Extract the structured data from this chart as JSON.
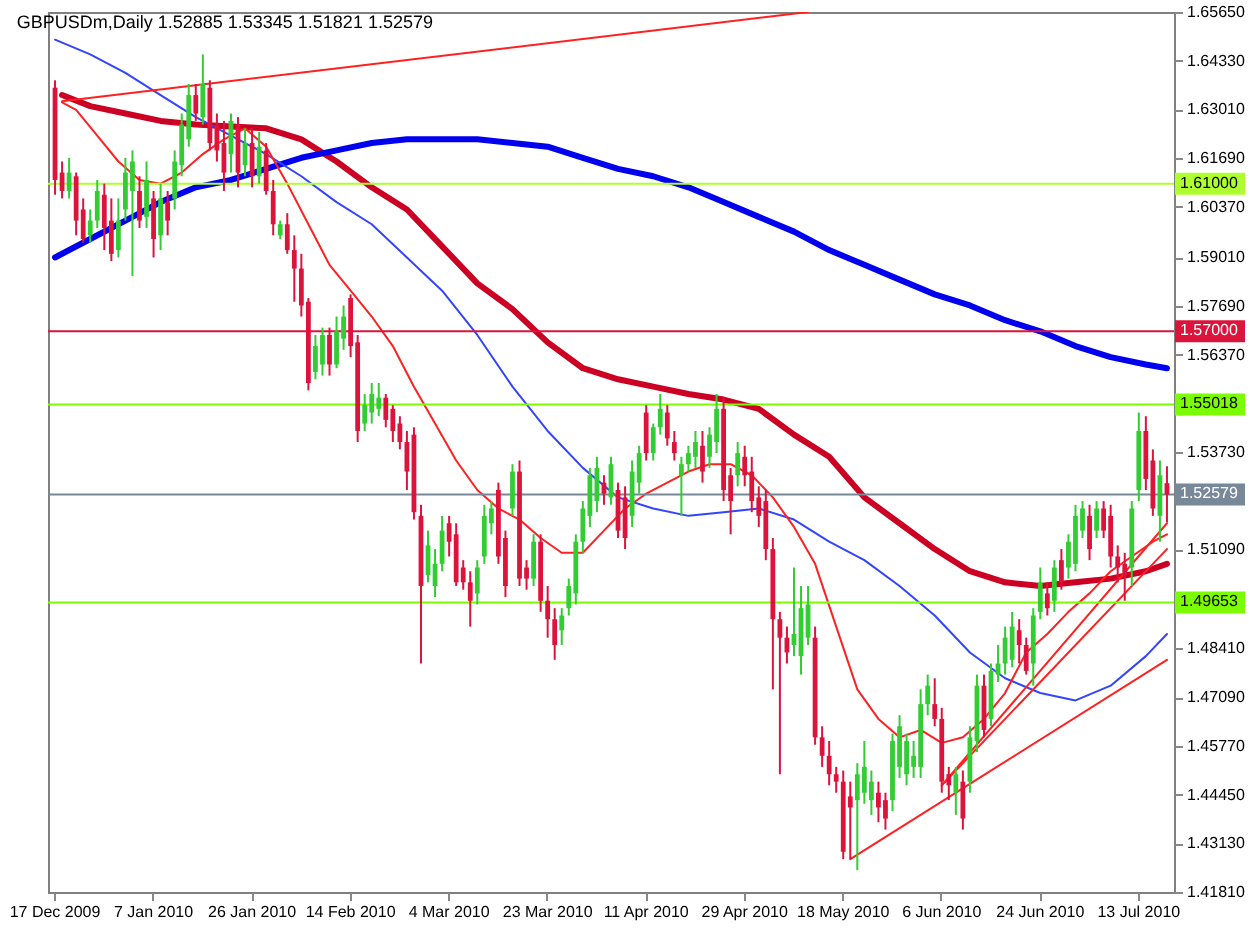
{
  "chart_data": {
    "type": "candlestick",
    "title": "GBPUSDm,Daily  1.52885 1.53345 1.51821 1.52579",
    "categories": [
      "17 Dec 2009",
      null,
      null,
      null,
      null,
      null,
      null,
      null,
      null,
      null,
      null,
      null,
      null,
      null,
      "7 Jan 2010",
      null,
      null,
      null,
      null,
      null,
      null,
      null,
      null,
      null,
      null,
      null,
      null,
      null,
      "26 Jan 2010",
      null,
      null,
      null,
      null,
      null,
      null,
      null,
      null,
      null,
      null,
      null,
      null,
      null,
      "14 Feb 2010",
      null,
      null,
      null,
      null,
      null,
      null,
      null,
      null,
      null,
      null,
      null,
      null,
      null,
      "4 Mar 2010",
      null,
      null,
      null,
      null,
      null,
      null,
      null,
      null,
      null,
      null,
      null,
      null,
      null,
      "23 Mar 2010",
      null,
      null,
      null,
      null,
      null,
      null,
      null,
      null,
      null,
      null,
      null,
      null,
      null,
      "11 Apr 2010",
      null,
      null,
      null,
      null,
      null,
      null,
      null,
      null,
      null,
      null,
      null,
      null,
      null,
      "29 Apr 2010",
      null,
      null,
      null,
      null,
      null,
      null,
      null,
      null,
      null,
      null,
      null,
      null,
      null,
      "18 May 2010",
      null,
      null,
      null,
      null,
      null,
      null,
      null,
      null,
      null,
      null,
      null,
      null,
      null,
      "6 Jun 2010",
      null,
      null,
      null,
      null,
      null,
      null,
      null,
      null,
      null,
      null,
      null,
      null,
      null,
      "24 Jun 2010",
      null,
      null,
      null,
      null,
      null,
      null,
      null,
      null,
      null,
      null,
      null,
      null,
      null,
      "13 Jul 2010",
      null,
      null,
      null,
      null
    ],
    "ohlc": [
      [
        1.636,
        1.638,
        1.607,
        1.611
      ],
      [
        1.613,
        1.616,
        1.606,
        1.608
      ],
      [
        1.608,
        1.617,
        1.606,
        1.613
      ],
      [
        1.612,
        1.613,
        1.596,
        1.6
      ],
      [
        1.603,
        1.606,
        1.594,
        1.595
      ],
      [
        1.596,
        1.603,
        1.594,
        1.6
      ],
      [
        1.6,
        1.611,
        1.598,
        1.608
      ],
      [
        1.607,
        1.61,
        1.592,
        1.598
      ],
      [
        1.6,
        1.606,
        1.589,
        1.591
      ],
      [
        1.592,
        1.606,
        1.59,
        1.6
      ],
      [
        1.603,
        1.617,
        1.6,
        1.613
      ],
      [
        1.608,
        1.619,
        1.585,
        1.616
      ],
      [
        1.608,
        1.612,
        1.598,
        1.6
      ],
      [
        1.601,
        1.616,
        1.598,
        1.611
      ],
      [
        1.606,
        1.608,
        1.59,
        1.595
      ],
      [
        1.596,
        1.61,
        1.592,
        1.606
      ],
      [
        1.605,
        1.608,
        1.596,
        1.6
      ],
      [
        1.606,
        1.619,
        1.603,
        1.616
      ],
      [
        1.615,
        1.629,
        1.612,
        1.626
      ],
      [
        1.622,
        1.637,
        1.62,
        1.634
      ],
      [
        1.634,
        1.637,
        1.627,
        1.629
      ],
      [
        1.628,
        1.645,
        1.626,
        1.637
      ],
      [
        1.636,
        1.638,
        1.619,
        1.621
      ],
      [
        1.626,
        1.629,
        1.616,
        1.619
      ],
      [
        1.621,
        1.627,
        1.608,
        1.613
      ],
      [
        1.618,
        1.629,
        1.613,
        1.627
      ],
      [
        1.626,
        1.628,
        1.609,
        1.613
      ],
      [
        1.615,
        1.625,
        1.612,
        1.621
      ],
      [
        1.621,
        1.625,
        1.609,
        1.612
      ],
      [
        1.612,
        1.624,
        1.61,
        1.62
      ],
      [
        1.619,
        1.621,
        1.607,
        1.608
      ],
      [
        1.608,
        1.611,
        1.596,
        1.599
      ],
      [
        1.596,
        1.6,
        1.595,
        1.599
      ],
      [
        1.599,
        1.602,
        1.591,
        1.592
      ],
      [
        1.592,
        1.596,
        1.578,
        1.587
      ],
      [
        1.587,
        1.591,
        1.574,
        1.577
      ],
      [
        1.578,
        1.579,
        1.554,
        1.556
      ],
      [
        1.559,
        1.569,
        1.557,
        1.566
      ],
      [
        1.561,
        1.571,
        1.558,
        1.569
      ],
      [
        1.569,
        1.571,
        1.558,
        1.561
      ],
      [
        1.561,
        1.574,
        1.56,
        1.57
      ],
      [
        1.568,
        1.577,
        1.565,
        1.574
      ],
      [
        1.579,
        1.58,
        1.563,
        1.566
      ],
      [
        1.567,
        1.569,
        1.54,
        1.543
      ],
      [
        1.545,
        1.553,
        1.543,
        1.55
      ],
      [
        1.548,
        1.556,
        1.545,
        1.553
      ],
      [
        1.549,
        1.556,
        1.547,
        1.552
      ],
      [
        1.552,
        1.553,
        1.544,
        1.546
      ],
      [
        1.549,
        1.55,
        1.54,
        1.543
      ],
      [
        1.545,
        1.547,
        1.538,
        1.54
      ],
      [
        1.54,
        1.543,
        1.527,
        1.532
      ],
      [
        1.542,
        1.544,
        1.519,
        1.521
      ],
      [
        1.52,
        1.523,
        1.48,
        1.501
      ],
      [
        1.504,
        1.516,
        1.502,
        1.512
      ],
      [
        1.501,
        1.511,
        1.498,
        1.507
      ],
      [
        1.507,
        1.52,
        1.505,
        1.516
      ],
      [
        1.518,
        1.52,
        1.509,
        1.513
      ],
      [
        1.515,
        1.518,
        1.501,
        1.502
      ],
      [
        1.506,
        1.508,
        1.5,
        1.502
      ],
      [
        1.502,
        1.505,
        1.49,
        1.497
      ],
      [
        1.499,
        1.508,
        1.496,
        1.506
      ],
      [
        1.509,
        1.523,
        1.507,
        1.52
      ],
      [
        1.518,
        1.524,
        1.515,
        1.522
      ],
      [
        1.527,
        1.529,
        1.507,
        1.509
      ],
      [
        1.514,
        1.516,
        1.498,
        1.501
      ],
      [
        1.522,
        1.534,
        1.52,
        1.532
      ],
      [
        1.532,
        1.535,
        1.501,
        1.503
      ],
      [
        1.506,
        1.508,
        1.5,
        1.503
      ],
      [
        1.503,
        1.515,
        1.501,
        1.513
      ],
      [
        1.513,
        1.515,
        1.494,
        1.497
      ],
      [
        1.497,
        1.501,
        1.487,
        1.492
      ],
      [
        1.492,
        1.495,
        1.481,
        1.485
      ],
      [
        1.489,
        1.495,
        1.485,
        1.493
      ],
      [
        1.495,
        1.503,
        1.493,
        1.501
      ],
      [
        1.499,
        1.515,
        1.496,
        1.513
      ],
      [
        1.513,
        1.524,
        1.51,
        1.522
      ],
      [
        1.52,
        1.533,
        1.517,
        1.531
      ],
      [
        1.524,
        1.536,
        1.521,
        1.533
      ],
      [
        1.529,
        1.531,
        1.523,
        1.526
      ],
      [
        1.525,
        1.536,
        1.523,
        1.534
      ],
      [
        1.527,
        1.529,
        1.514,
        1.516
      ],
      [
        1.525,
        1.528,
        1.511,
        1.514
      ],
      [
        1.52,
        1.535,
        1.517,
        1.532
      ],
      [
        1.529,
        1.539,
        1.526,
        1.537
      ],
      [
        1.548,
        1.55,
        1.535,
        1.537
      ],
      [
        1.537,
        1.545,
        1.535,
        1.544
      ],
      [
        1.544,
        1.553,
        1.542,
        1.549
      ],
      [
        1.548,
        1.55,
        1.539,
        1.541
      ],
      [
        1.54,
        1.543,
        1.535,
        1.537
      ],
      [
        1.531,
        1.536,
        1.52,
        1.534
      ],
      [
        1.534,
        1.539,
        1.532,
        1.537
      ],
      [
        1.536,
        1.543,
        1.533,
        1.54
      ],
      [
        1.539,
        1.543,
        1.529,
        1.532
      ],
      [
        1.536,
        1.544,
        1.533,
        1.542
      ],
      [
        1.54,
        1.553,
        1.537,
        1.549
      ],
      [
        1.549,
        1.552,
        1.524,
        1.527
      ],
      [
        1.531,
        1.533,
        1.515,
        1.524
      ],
      [
        1.531,
        1.54,
        1.528,
        1.537
      ],
      [
        1.536,
        1.539,
        1.528,
        1.531
      ],
      [
        1.532,
        1.536,
        1.521,
        1.524
      ],
      [
        1.525,
        1.528,
        1.517,
        1.52
      ],
      [
        1.524,
        1.527,
        1.508,
        1.511
      ],
      [
        1.511,
        1.514,
        1.473,
        1.492
      ],
      [
        1.492,
        1.494,
        1.45,
        1.487
      ],
      [
        1.487,
        1.49,
        1.48,
        1.483
      ],
      [
        1.485,
        1.506,
        1.482,
        1.488
      ],
      [
        1.482,
        1.501,
        1.477,
        1.495
      ],
      [
        1.487,
        1.501,
        1.485,
        1.496
      ],
      [
        1.487,
        1.49,
        1.458,
        1.46
      ],
      [
        1.46,
        1.463,
        1.452,
        1.455
      ],
      [
        1.455,
        1.459,
        1.447,
        1.45
      ],
      [
        1.45,
        1.452,
        1.445,
        1.448
      ],
      [
        1.448,
        1.451,
        1.427,
        1.429
      ],
      [
        1.444,
        1.448,
        1.427,
        1.441
      ],
      [
        1.443,
        1.453,
        1.424,
        1.45
      ],
      [
        1.445,
        1.459,
        1.442,
        1.452
      ],
      [
        1.443,
        1.451,
        1.439,
        1.448
      ],
      [
        1.445,
        1.448,
        1.437,
        1.441
      ],
      [
        1.443,
        1.445,
        1.435,
        1.438
      ],
      [
        1.443,
        1.461,
        1.44,
        1.459
      ],
      [
        1.452,
        1.466,
        1.449,
        1.463
      ],
      [
        1.45,
        1.461,
        1.447,
        1.459
      ],
      [
        1.452,
        1.459,
        1.449,
        1.455
      ],
      [
        1.452,
        1.473,
        1.449,
        1.469
      ],
      [
        1.469,
        1.477,
        1.466,
        1.474
      ],
      [
        1.469,
        1.476,
        1.463,
        1.465
      ],
      [
        1.465,
        1.468,
        1.445,
        1.448
      ],
      [
        1.45,
        1.452,
        1.443,
        1.447
      ],
      [
        1.445,
        1.452,
        1.439,
        1.45
      ],
      [
        1.448,
        1.451,
        1.435,
        1.438
      ],
      [
        1.448,
        1.463,
        1.445,
        1.46
      ],
      [
        1.459,
        1.477,
        1.456,
        1.474
      ],
      [
        1.474,
        1.477,
        1.46,
        1.462
      ],
      [
        1.465,
        1.48,
        1.463,
        1.478
      ],
      [
        1.477,
        1.485,
        1.475,
        1.48
      ],
      [
        1.48,
        1.49,
        1.477,
        1.487
      ],
      [
        1.481,
        1.494,
        1.479,
        1.49
      ],
      [
        1.489,
        1.492,
        1.48,
        1.485
      ],
      [
        1.485,
        1.487,
        1.477,
        1.478
      ],
      [
        1.48,
        1.495,
        1.474,
        1.493
      ],
      [
        1.494,
        1.506,
        1.492,
        1.502
      ],
      [
        1.499,
        1.502,
        1.493,
        1.495
      ],
      [
        1.497,
        1.508,
        1.494,
        1.506
      ],
      [
        1.508,
        1.511,
        1.5,
        1.502
      ],
      [
        1.506,
        1.515,
        1.503,
        1.513
      ],
      [
        1.507,
        1.523,
        1.505,
        1.52
      ],
      [
        1.516,
        1.524,
        1.514,
        1.522
      ],
      [
        1.52,
        1.523,
        1.508,
        1.511
      ],
      [
        1.516,
        1.524,
        1.514,
        1.522
      ],
      [
        1.522,
        1.524,
        1.514,
        1.516
      ],
      [
        1.52,
        1.523,
        1.506,
        1.509
      ],
      [
        1.509,
        1.512,
        1.502,
        1.506
      ],
      [
        1.507,
        1.51,
        1.497,
        1.504
      ],
      [
        1.506,
        1.524,
        1.501,
        1.522
      ],
      [
        1.527,
        1.548,
        1.524,
        1.543
      ],
      [
        1.543,
        1.547,
        1.527,
        1.53
      ],
      [
        1.535,
        1.538,
        1.52,
        1.522
      ],
      [
        1.52,
        1.535,
        1.513,
        1.531
      ],
      [
        1.52885,
        1.53345,
        1.51821,
        1.52579
      ]
    ],
    "colors": [
      "#dc143c",
      "#dc143c",
      "#32cd32",
      "#dc143c",
      "#dc143c",
      "#32cd32",
      "#32cd32",
      "#dc143c",
      "#dc143c",
      "#32cd32",
      "#32cd32",
      "#32cd32",
      "#dc143c",
      "#32cd32",
      "#dc143c",
      "#32cd32",
      "#dc143c",
      "#32cd32",
      "#32cd32",
      "#32cd32",
      "#dc143c",
      "#32cd32",
      "#dc143c",
      "#dc143c",
      "#dc143c",
      "#32cd32",
      "#dc143c",
      "#32cd32",
      "#dc143c",
      "#32cd32",
      "#dc143c",
      "#dc143c",
      "#32cd32",
      "#dc143c",
      "#dc143c",
      "#dc143c",
      "#dc143c",
      "#32cd32",
      "#32cd32",
      "#dc143c",
      "#32cd32",
      "#32cd32",
      "#dc143c",
      "#dc143c",
      "#32cd32",
      "#32cd32",
      "#32cd32",
      "#dc143c",
      "#dc143c",
      "#dc143c",
      "#dc143c",
      "#dc143c",
      "#dc143c",
      "#32cd32",
      "#32cd32",
      "#32cd32",
      "#dc143c",
      "#dc143c",
      "#dc143c",
      "#dc143c",
      "#32cd32",
      "#32cd32",
      "#32cd32",
      "#dc143c",
      "#dc143c",
      "#32cd32",
      "#dc143c",
      "#dc143c",
      "#32cd32",
      "#dc143c",
      "#dc143c",
      "#dc143c",
      "#32cd32",
      "#32cd32",
      "#32cd32",
      "#32cd32",
      "#32cd32",
      "#32cd32",
      "#dc143c",
      "#32cd32",
      "#dc143c",
      "#dc143c",
      "#32cd32",
      "#32cd32",
      "#dc143c",
      "#32cd32",
      "#32cd32",
      "#dc143c",
      "#dc143c",
      "#32cd32",
      "#32cd32",
      "#32cd32",
      "#dc143c",
      "#32cd32",
      "#32cd32",
      "#dc143c",
      "#dc143c",
      "#32cd32",
      "#dc143c",
      "#dc143c",
      "#dc143c",
      "#dc143c",
      "#dc143c",
      "#dc143c",
      "#dc143c",
      "#32cd32",
      "#32cd32",
      "#32cd32",
      "#dc143c",
      "#dc143c",
      "#dc143c",
      "#dc143c",
      "#dc143c",
      "#dc143c",
      "#32cd32",
      "#32cd32",
      "#32cd32",
      "#dc143c",
      "#dc143c",
      "#32cd32",
      "#32cd32",
      "#32cd32",
      "#32cd32",
      "#32cd32",
      "#32cd32",
      "#dc143c",
      "#dc143c",
      "#dc143c",
      "#32cd32",
      "#dc143c",
      "#32cd32",
      "#32cd32",
      "#dc143c",
      "#32cd32",
      "#32cd32",
      "#32cd32",
      "#32cd32",
      "#dc143c",
      "#dc143c",
      "#32cd32",
      "#32cd32",
      "#dc143c",
      "#32cd32",
      "#dc143c",
      "#32cd32",
      "#32cd32",
      "#32cd32",
      "#dc143c",
      "#32cd32",
      "#dc143c",
      "#dc143c",
      "#dc143c",
      "#dc143c",
      "#32cd32",
      "#32cd32",
      "#dc143c",
      "#dc143c",
      "#32cd32",
      "#dc143c"
    ],
    "ylim": [
      1.4181,
      1.6565
    ],
    "yticks": [
      {
        "value": 1.6565,
        "label": "1.65650"
      },
      {
        "value": 1.6433,
        "label": "1.64330"
      },
      {
        "value": 1.6301,
        "label": "1.63010"
      },
      {
        "value": 1.6169,
        "label": "1.61690"
      },
      {
        "value": 1.6037,
        "label": "1.60370"
      },
      {
        "value": 1.5901,
        "label": "1.59010"
      },
      {
        "value": 1.5769,
        "label": "1.57690"
      },
      {
        "value": 1.5637,
        "label": "1.56370"
      },
      {
        "value": 1.5373,
        "label": "1.53730"
      },
      {
        "value": 1.5109,
        "label": "1.51090"
      },
      {
        "value": 1.4841,
        "label": "1.48410"
      },
      {
        "value": 1.4709,
        "label": "1.47090"
      },
      {
        "value": 1.4577,
        "label": "1.45770"
      },
      {
        "value": 1.4445,
        "label": "1.44450"
      },
      {
        "value": 1.4313,
        "label": "1.43130"
      },
      {
        "value": 1.4181,
        "label": "1.41810"
      }
    ],
    "ref_lines": [
      {
        "axis": "y",
        "value": 1.61,
        "label": "1.61000",
        "color": "#adff2f"
      },
      {
        "axis": "y",
        "value": 1.57,
        "label": "1.57000",
        "color": "#dc143c"
      },
      {
        "axis": "y",
        "value": 1.55018,
        "label": "1.55018",
        "color": "#7cfc00"
      },
      {
        "axis": "y",
        "value": 1.52579,
        "label": "1.52579",
        "color": "#778899"
      },
      {
        "axis": "y",
        "value": 1.49653,
        "label": "1.49653",
        "color": "#7cfc00"
      }
    ],
    "series": [
      {
        "type": "line",
        "color": "#cc0022",
        "values": [
          null,
          1.634,
          null,
          null,
          null,
          1.631,
          null,
          null,
          null,
          null,
          1.629,
          null,
          null,
          null,
          null,
          1.627,
          null,
          null,
          null,
          null,
          1.626,
          null,
          null,
          null,
          null,
          1.6255,
          null,
          null,
          null,
          null,
          1.625,
          null,
          null,
          null,
          null,
          1.622,
          null,
          null,
          null,
          null,
          1.616,
          null,
          null,
          null,
          null,
          1.609,
          null,
          null,
          null,
          null,
          1.603,
          null,
          null,
          null,
          null,
          1.593,
          null,
          null,
          null,
          null,
          1.583,
          null,
          null,
          null,
          null,
          1.576,
          null,
          null,
          null,
          null,
          1.567,
          null,
          null,
          null,
          null,
          1.56,
          null,
          null,
          null,
          null,
          1.557,
          null,
          null,
          null,
          null,
          1.555,
          null,
          null,
          null,
          null,
          1.553,
          null,
          null,
          null,
          null,
          1.5515,
          null,
          null,
          null,
          null,
          1.549,
          null,
          null,
          null,
          null,
          1.542,
          null,
          null,
          null,
          null,
          1.536,
          null,
          null,
          null,
          null,
          1.525,
          null,
          null,
          null,
          null,
          1.518,
          null,
          null,
          null,
          null,
          1.511,
          null,
          null,
          null,
          null,
          1.505,
          null,
          null,
          null,
          null,
          1.502,
          null,
          null,
          null,
          null,
          1.501,
          null,
          null,
          null,
          null,
          1.502,
          null,
          null,
          null,
          null,
          1.503,
          null,
          null,
          null,
          null,
          1.505,
          null,
          null,
          1.507
        ]
      },
      {
        "type": "line",
        "color": "#0000ee",
        "values": [
          1.59,
          null,
          null,
          null,
          null,
          1.595,
          null,
          null,
          null,
          null,
          1.6,
          null,
          null,
          null,
          null,
          1.605,
          null,
          null,
          null,
          null,
          1.609,
          null,
          null,
          null,
          null,
          1.611,
          null,
          null,
          null,
          null,
          1.614,
          null,
          null,
          null,
          null,
          1.617,
          null,
          null,
          null,
          null,
          1.619,
          null,
          null,
          null,
          null,
          1.621,
          null,
          null,
          null,
          null,
          1.622,
          null,
          null,
          null,
          null,
          1.622,
          null,
          null,
          null,
          null,
          1.622,
          null,
          null,
          null,
          null,
          1.621,
          null,
          null,
          null,
          null,
          1.62,
          null,
          null,
          null,
          null,
          1.617,
          null,
          null,
          null,
          null,
          1.614,
          null,
          null,
          null,
          null,
          1.612,
          null,
          null,
          null,
          null,
          1.609,
          null,
          null,
          null,
          null,
          1.605,
          null,
          null,
          null,
          null,
          1.601,
          null,
          null,
          null,
          null,
          1.597,
          null,
          null,
          null,
          null,
          1.592,
          null,
          null,
          null,
          null,
          1.588,
          null,
          null,
          null,
          null,
          1.584,
          null,
          null,
          null,
          null,
          1.58,
          null,
          null,
          null,
          null,
          1.577,
          null,
          null,
          null,
          null,
          1.573,
          null,
          null,
          null,
          null,
          1.57,
          null,
          null,
          null,
          null,
          1.566,
          null,
          null,
          null,
          null,
          1.563,
          null,
          null,
          null,
          null,
          1.561,
          null,
          null,
          1.56
        ]
      },
      {
        "type": "line",
        "color": "#3344ff",
        "values": [
          1.649,
          null,
          null,
          null,
          null,
          1.645,
          null,
          null,
          null,
          null,
          1.64,
          null,
          null,
          null,
          null,
          1.634,
          null,
          null,
          null,
          null,
          1.628,
          null,
          null,
          null,
          null,
          1.623,
          null,
          null,
          null,
          null,
          1.618,
          null,
          null,
          null,
          null,
          1.612,
          null,
          null,
          null,
          null,
          1.605,
          null,
          null,
          null,
          null,
          1.599,
          null,
          null,
          null,
          null,
          1.59,
          null,
          null,
          null,
          null,
          1.581,
          null,
          null,
          null,
          null,
          1.569,
          null,
          null,
          null,
          null,
          1.555,
          null,
          null,
          null,
          null,
          1.543,
          null,
          null,
          null,
          null,
          1.533,
          null,
          null,
          null,
          null,
          1.525,
          null,
          null,
          null,
          null,
          1.522,
          null,
          null,
          null,
          null,
          1.52,
          null,
          null,
          null,
          null,
          1.521,
          null,
          null,
          null,
          null,
          1.522,
          null,
          null,
          null,
          null,
          1.519,
          null,
          null,
          null,
          null,
          1.513,
          null,
          null,
          null,
          null,
          1.508,
          null,
          null,
          null,
          null,
          1.501,
          null,
          null,
          null,
          null,
          1.493,
          null,
          null,
          null,
          null,
          1.483,
          null,
          null,
          null,
          null,
          1.476,
          null,
          null,
          null,
          null,
          1.472,
          null,
          null,
          null,
          null,
          1.47,
          null,
          null,
          null,
          null,
          1.474,
          null,
          null,
          null,
          null,
          1.482,
          null,
          null,
          1.488
        ]
      },
      {
        "type": "line",
        "color": "#ff2020",
        "values": [
          null,
          1.632,
          null,
          1.63,
          null,
          null,
          1.623,
          null,
          null,
          1.616,
          null,
          null,
          1.611,
          null,
          null,
          1.61,
          null,
          null,
          1.613,
          null,
          null,
          1.618,
          null,
          null,
          1.622,
          null,
          null,
          1.625,
          null,
          null,
          1.62,
          null,
          null,
          1.61,
          null,
          null,
          1.599,
          null,
          null,
          1.588,
          null,
          null,
          1.581,
          null,
          null,
          1.574,
          null,
          null,
          1.566,
          null,
          null,
          1.555,
          null,
          null,
          1.545,
          null,
          null,
          1.535,
          null,
          null,
          1.527,
          null,
          null,
          1.522,
          null,
          null,
          1.519,
          null,
          null,
          1.514,
          null,
          null,
          1.51,
          null,
          null,
          1.51,
          null,
          null,
          1.516,
          null,
          null,
          1.522,
          null,
          null,
          1.526,
          null,
          null,
          1.529,
          null,
          null,
          1.532,
          null,
          null,
          1.534,
          null,
          null,
          1.534,
          null,
          null,
          1.531,
          null,
          null,
          1.525,
          null,
          null,
          1.517,
          null,
          null,
          1.507,
          null,
          null,
          1.49,
          null,
          null,
          1.473,
          null,
          null,
          1.465,
          null,
          null,
          1.46,
          null,
          null,
          1.462,
          null,
          null,
          1.4585,
          null,
          null,
          1.46,
          null,
          null,
          1.465,
          null,
          null,
          1.472,
          null,
          null,
          1.483,
          null,
          null,
          1.488,
          null,
          null,
          1.494,
          null,
          null,
          1.499,
          null,
          null,
          1.505,
          null,
          null,
          1.509,
          null,
          null,
          1.513,
          null,
          1.515
        ]
      },
      {
        "type": "line",
        "color": "#ff2020",
        "values": [
          null,
          1.6323,
          null,
          null,
          null,
          null,
          null,
          null,
          null,
          null,
          null,
          null,
          null,
          null,
          null,
          null,
          null,
          null,
          null,
          null,
          null,
          null,
          null,
          null,
          null,
          null,
          null,
          null,
          null,
          null,
          null,
          null,
          null,
          null,
          null,
          null,
          null,
          null,
          null,
          null,
          null,
          null,
          null,
          null,
          null,
          null,
          null,
          null,
          null,
          null,
          null,
          null,
          null,
          null,
          null,
          null,
          null,
          null,
          null,
          null,
          null,
          null,
          null,
          null,
          null,
          null,
          null,
          null,
          null,
          null,
          null,
          null,
          null,
          null,
          null,
          null,
          null,
          null,
          null,
          null,
          null,
          null,
          null,
          null,
          null,
          null,
          null,
          null,
          null,
          null,
          null,
          null,
          null,
          null,
          null,
          null,
          null,
          null,
          null,
          null,
          null,
          null,
          null,
          null,
          null,
          null,
          null,
          1.6565,
          null,
          null,
          null,
          null,
          null,
          null,
          null,
          null,
          null,
          null,
          null,
          null,
          null,
          null,
          null,
          null,
          null,
          null,
          null,
          null,
          null,
          null,
          null,
          null,
          null,
          null,
          null,
          null,
          null,
          null,
          null,
          null,
          null,
          null,
          null,
          null,
          null,
          null,
          null,
          null,
          null,
          null,
          null,
          null,
          null,
          null,
          null,
          null,
          null,
          null,
          null
        ]
      },
      {
        "type": "line",
        "color": "#ff2020",
        "values": [
          null,
          null,
          null,
          null,
          null,
          null,
          null,
          null,
          null,
          null,
          null,
          null,
          null,
          null,
          null,
          null,
          null,
          null,
          null,
          null,
          null,
          null,
          null,
          null,
          null,
          null,
          null,
          null,
          null,
          null,
          null,
          null,
          null,
          null,
          null,
          null,
          null,
          null,
          null,
          null,
          null,
          null,
          null,
          null,
          null,
          null,
          null,
          null,
          null,
          null,
          null,
          null,
          null,
          null,
          null,
          null,
          null,
          null,
          null,
          null,
          null,
          null,
          null,
          null,
          null,
          null,
          null,
          null,
          null,
          null,
          null,
          null,
          null,
          null,
          null,
          null,
          null,
          null,
          null,
          null,
          null,
          null,
          null,
          null,
          null,
          null,
          null,
          null,
          null,
          null,
          null,
          null,
          null,
          null,
          null,
          null,
          null,
          null,
          null,
          null,
          null,
          null,
          null,
          null,
          null,
          null,
          null,
          null,
          null,
          null,
          null,
          null,
          null,
          1.427,
          null,
          null,
          null,
          null,
          null,
          null,
          null,
          null,
          null,
          null,
          null,
          null,
          null,
          null,
          null,
          null,
          null,
          null,
          null,
          null,
          null,
          null,
          null,
          null,
          null,
          null,
          null,
          null,
          null,
          null,
          null,
          null,
          null,
          null,
          null,
          null,
          null,
          null,
          null,
          null,
          null,
          null,
          null,
          null,
          1.481
        ]
      },
      {
        "type": "line",
        "color": "#ff2020",
        "values": [
          null,
          null,
          null,
          null,
          null,
          null,
          null,
          null,
          null,
          null,
          null,
          null,
          null,
          null,
          null,
          null,
          null,
          null,
          null,
          null,
          null,
          null,
          null,
          null,
          null,
          null,
          null,
          null,
          null,
          null,
          null,
          null,
          null,
          null,
          null,
          null,
          null,
          null,
          null,
          null,
          null,
          null,
          null,
          null,
          null,
          null,
          null,
          null,
          null,
          null,
          null,
          null,
          null,
          null,
          null,
          null,
          null,
          null,
          null,
          null,
          null,
          null,
          null,
          null,
          null,
          null,
          null,
          null,
          null,
          null,
          null,
          null,
          null,
          null,
          null,
          null,
          null,
          null,
          null,
          null,
          null,
          null,
          null,
          null,
          null,
          null,
          null,
          null,
          null,
          null,
          null,
          null,
          null,
          null,
          null,
          null,
          null,
          null,
          null,
          null,
          null,
          null,
          null,
          null,
          null,
          null,
          null,
          null,
          null,
          null,
          null,
          null,
          null,
          null,
          null,
          null,
          null,
          null,
          null,
          null,
          null,
          null,
          null,
          null,
          null,
          null,
          1.447,
          null,
          null,
          null,
          null,
          null,
          null,
          null,
          null,
          null,
          null,
          null,
          null,
          null,
          null,
          null,
          null,
          null,
          null,
          null,
          null,
          null,
          null,
          null,
          null,
          null,
          null,
          null,
          null,
          null,
          null,
          null,
          1.518
        ]
      },
      {
        "type": "line",
        "color": "#ff2020",
        "values": [
          null,
          null,
          null,
          null,
          null,
          null,
          null,
          null,
          null,
          null,
          null,
          null,
          null,
          null,
          null,
          null,
          null,
          null,
          null,
          null,
          null,
          null,
          null,
          null,
          null,
          null,
          null,
          null,
          null,
          null,
          null,
          null,
          null,
          null,
          null,
          null,
          null,
          null,
          null,
          null,
          null,
          null,
          null,
          null,
          null,
          null,
          null,
          null,
          null,
          null,
          null,
          null,
          null,
          null,
          null,
          null,
          null,
          null,
          null,
          null,
          null,
          null,
          null,
          null,
          null,
          null,
          null,
          null,
          null,
          null,
          null,
          null,
          null,
          null,
          null,
          null,
          null,
          null,
          null,
          null,
          null,
          null,
          null,
          null,
          null,
          null,
          null,
          null,
          null,
          null,
          null,
          null,
          null,
          null,
          null,
          null,
          null,
          null,
          null,
          null,
          null,
          null,
          null,
          null,
          null,
          null,
          null,
          null,
          null,
          null,
          null,
          null,
          null,
          null,
          null,
          null,
          null,
          null,
          null,
          null,
          null,
          null,
          null,
          null,
          null,
          null,
          1.447,
          null,
          null,
          null,
          null,
          null,
          null,
          null,
          null,
          null,
          null,
          null,
          null,
          null,
          null,
          null,
          null,
          null,
          null,
          null,
          null,
          null,
          null,
          null,
          null,
          null,
          null,
          null,
          null,
          null,
          null,
          null,
          1.511
        ]
      }
    ]
  }
}
